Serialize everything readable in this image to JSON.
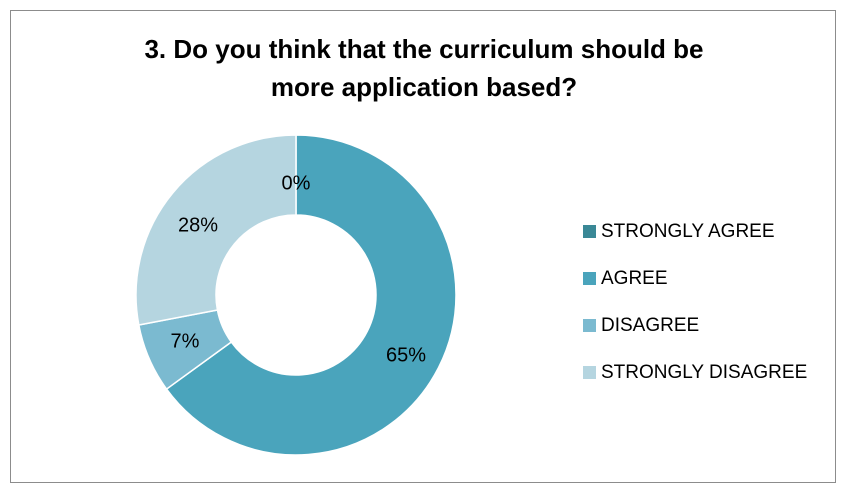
{
  "chart_data": {
    "type": "pie",
    "variant": "donut",
    "title_lines": [
      "3. Do you think that the curriculum should be",
      "more application based?"
    ],
    "categories": [
      "STRONGLY AGREE",
      "AGREE",
      "DISAGREE",
      "STRONGLY DISAGREE"
    ],
    "values": [
      0,
      65,
      7,
      28
    ],
    "data_labels": [
      "0%",
      "65%",
      "7%",
      "28%"
    ],
    "colors": [
      "#3a8896",
      "#4aa4bc",
      "#7bbad0",
      "#b5d5e0"
    ],
    "legend_position": "right"
  }
}
